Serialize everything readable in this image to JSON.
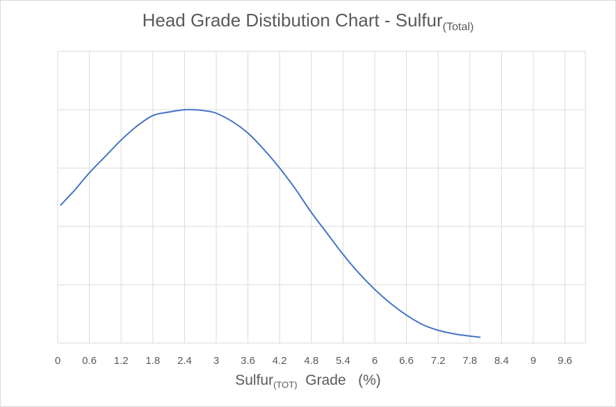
{
  "chart_data": {
    "type": "line",
    "title": {
      "main": "Head Grade Distibution Chart - Sulfur",
      "sub": "(Total)"
    },
    "xlabel": {
      "main": "Sulfur",
      "sub": "(TOT)",
      "rest": "  Grade   (%)"
    },
    "ylabel": "",
    "xlim": [
      0,
      10.0
    ],
    "ylim": [
      0,
      1.0
    ],
    "x_ticks": [
      "0",
      "0.6",
      "1.2",
      "1.8",
      "2.4",
      "3",
      "3.6",
      "4.2",
      "4.8",
      "5.4",
      "6",
      "6.6",
      "7.2",
      "7.8",
      "8.4",
      "9",
      "9.6"
    ],
    "y_gridlines": 5,
    "grid": true,
    "legend": "none",
    "series_color": "#4472c4",
    "series": [
      {
        "x": [
          0.05,
          0.3,
          0.6,
          0.9,
          1.2,
          1.5,
          1.8,
          2.1,
          2.4,
          2.6,
          2.8,
          3.0,
          3.3,
          3.6,
          3.9,
          4.2,
          4.5,
          4.8,
          5.1,
          5.4,
          5.7,
          6.0,
          6.3,
          6.6,
          6.9,
          7.2,
          7.5,
          7.8,
          8.0
        ],
        "y": [
          0.59,
          0.65,
          0.73,
          0.8,
          0.87,
          0.93,
          0.975,
          0.99,
          1.0,
          1.0,
          0.995,
          0.985,
          0.95,
          0.9,
          0.83,
          0.75,
          0.66,
          0.56,
          0.47,
          0.38,
          0.3,
          0.23,
          0.17,
          0.12,
          0.08,
          0.055,
          0.04,
          0.03,
          0.025
        ]
      }
    ]
  }
}
